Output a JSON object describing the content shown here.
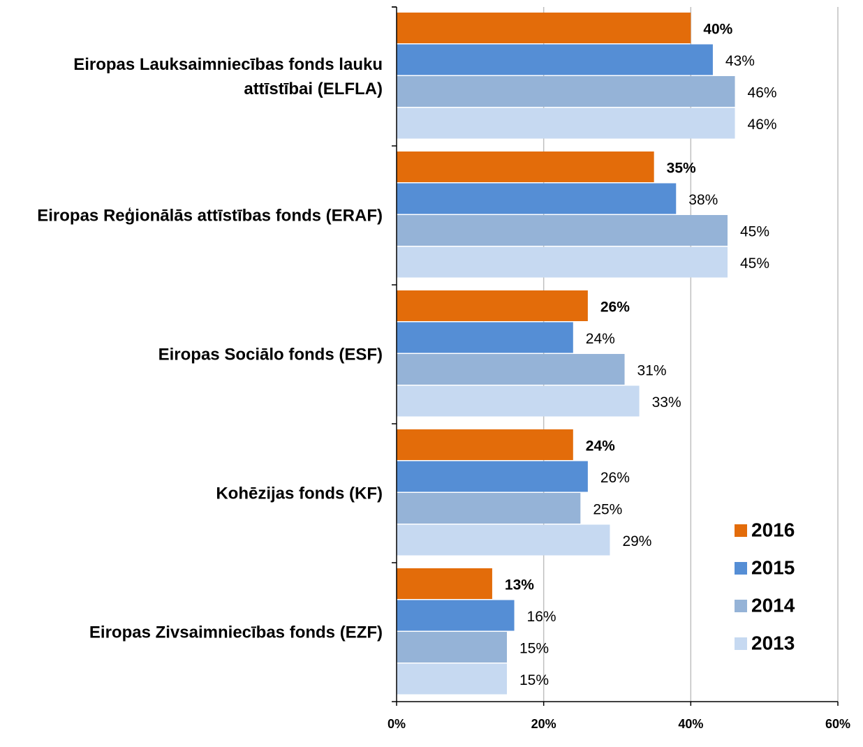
{
  "chart_data": {
    "type": "hbar",
    "categories": [
      "Eiropas Lauksaimniecības fonds lauku attīstībai (ELFLA)",
      "Eiropas Reģionālās attīstības fonds (ERAF)",
      "Eiropas Sociālo fonds (ESF)",
      "Kohēzijas fonds (KF)",
      "Eiropas Zivsaimniecības fonds (EZF)"
    ],
    "series": [
      {
        "name": "2016",
        "color": "#e36c0a",
        "values": [
          40,
          35,
          26,
          24,
          13
        ],
        "value_labels": [
          "40%",
          "35%",
          "26%",
          "24%",
          "13%"
        ]
      },
      {
        "name": "2015",
        "color": "#558ed5",
        "values": [
          43,
          38,
          24,
          26,
          16
        ],
        "value_labels": [
          "43%",
          "38%",
          "24%",
          "26%",
          "16%"
        ]
      },
      {
        "name": "2014",
        "color": "#95b3d7",
        "values": [
          46,
          45,
          31,
          25,
          15
        ],
        "value_labels": [
          "46%",
          "45%",
          "31%",
          "25%",
          "15%"
        ]
      },
      {
        "name": "2013",
        "color": "#c6d9f1",
        "values": [
          46,
          45,
          33,
          29,
          15
        ],
        "value_labels": [
          "46%",
          "45%",
          "33%",
          "29%",
          "15%"
        ]
      }
    ],
    "xlim": [
      0,
      60
    ],
    "xticks": [
      {
        "value": 0,
        "label": "0%"
      },
      {
        "value": 20,
        "label": "20%"
      },
      {
        "value": 40,
        "label": "40%"
      },
      {
        "value": 60,
        "label": "60%"
      }
    ],
    "grid": true,
    "legend": "lower right"
  }
}
